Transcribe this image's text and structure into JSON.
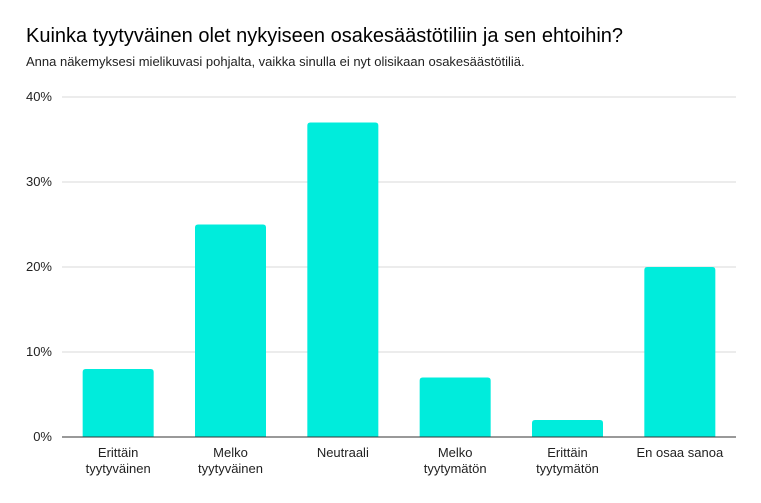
{
  "chart_data": {
    "type": "bar",
    "title": "Kuinka tyytyväinen olet nykyiseen osakesäästötiliin ja sen ehtoihin?",
    "subtitle": "Anna näkemyksesi mielikuvasi pohjalta, vaikka sinulla ei nyt olisikaan osakesäästötiliä.",
    "categories": [
      [
        "Erittäin",
        "tyytyväinen"
      ],
      [
        "Melko",
        "tyytyväinen"
      ],
      [
        "Neutraali"
      ],
      [
        "Melko",
        "tyytymätön"
      ],
      [
        "Erittäin",
        "tyytymätön"
      ],
      [
        "En osaa sanoa"
      ]
    ],
    "values": [
      8,
      25,
      37,
      7,
      2,
      20
    ],
    "y_ticks": [
      "0%",
      "10%",
      "20%",
      "30%",
      "40%"
    ],
    "ylim": [
      0,
      40
    ],
    "grid": true,
    "bar_color": "#00ecdc",
    "xlabel": "",
    "ylabel": ""
  }
}
